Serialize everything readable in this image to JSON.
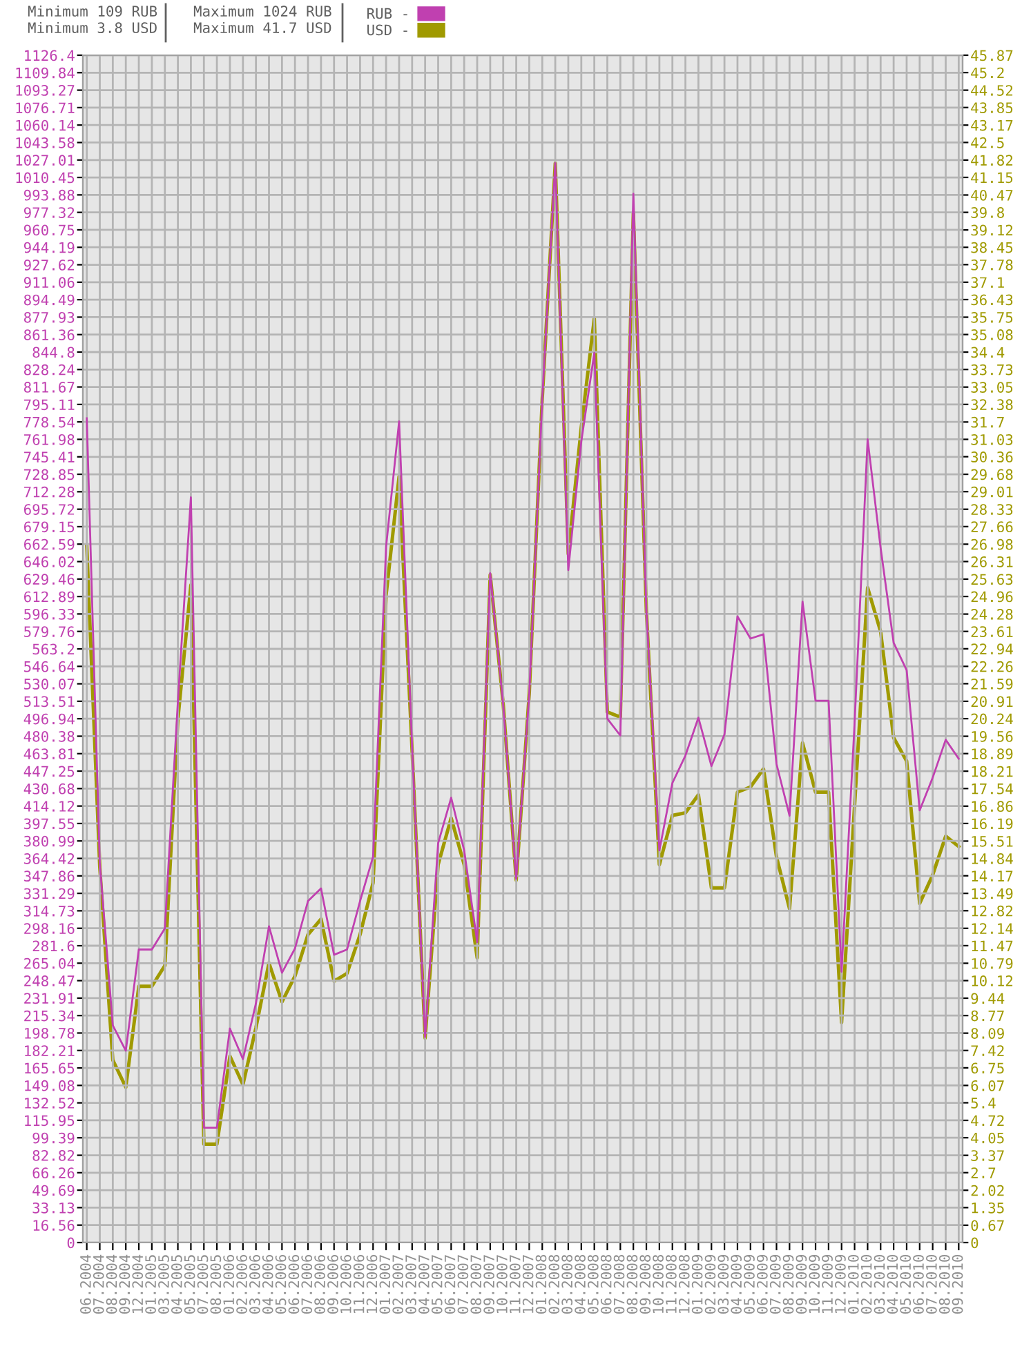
{
  "chart_data": {
    "type": "line",
    "annotations": [
      "Minimum 109 RUB",
      "Minimum 3.8 USD",
      "Maximum 1024 RUB",
      "Maximum 41.7 USD"
    ],
    "categories": [
      "06.2004",
      "07.2004",
      "08.2004",
      "09.2004",
      "12.2004",
      "01.2005",
      "03.2005",
      "04.2005",
      "05.2005",
      "07.2005",
      "08.2005",
      "01.2006",
      "02.2006",
      "03.2006",
      "04.2006",
      "05.2006",
      "06.2006",
      "07.2006",
      "08.2006",
      "09.2006",
      "10.2006",
      "11.2006",
      "12.2006",
      "01.2007",
      "02.2007",
      "03.2007",
      "04.2007",
      "05.2007",
      "06.2007",
      "07.2007",
      "08.2007",
      "09.2007",
      "10.2007",
      "11.2007",
      "12.2007",
      "01.2008",
      "02.2008",
      "03.2008",
      "04.2008",
      "05.2008",
      "06.2008",
      "07.2008",
      "08.2008",
      "09.2008",
      "10.2008",
      "11.2008",
      "12.2008",
      "01.2009",
      "02.2009",
      "03.2009",
      "04.2009",
      "05.2009",
      "06.2009",
      "07.2009",
      "08.2009",
      "09.2009",
      "10.2009",
      "11.2009",
      "12.2009",
      "01.2010",
      "02.2010",
      "03.2010",
      "04.2010",
      "05.2010",
      "06.2010",
      "07.2010",
      "08.2010",
      "09.2010"
    ],
    "series": [
      {
        "name": "RUB -",
        "color": "#c040b0",
        "values": [
          782,
          360,
          206,
          182,
          278,
          278,
          298,
          513,
          707,
          109,
          109,
          203,
          174,
          227,
          300,
          256,
          279,
          324,
          336,
          273,
          278,
          324,
          366,
          660,
          779,
          470,
          195,
          379,
          422,
          372,
          285,
          635,
          510,
          345,
          520,
          800,
          1024,
          638,
          760,
          844,
          497,
          481,
          995,
          600,
          372,
          436,
          462,
          498,
          452,
          482,
          594,
          573,
          577,
          454,
          405,
          608,
          514,
          514,
          257,
          493,
          762,
          659,
          569,
          543,
          410,
          441,
          477,
          459
        ]
      },
      {
        "name": "USD -",
        "color": "#a09a00",
        "axis": "y2",
        "values": [
          26.9,
          14.5,
          7.05,
          6.0,
          9.9,
          9.9,
          10.7,
          20.2,
          25.4,
          3.8,
          3.8,
          7.2,
          6.1,
          8.3,
          10.8,
          9.3,
          10.3,
          11.9,
          12.5,
          10.1,
          10.4,
          11.9,
          13.9,
          25.0,
          29.6,
          19.0,
          7.9,
          14.6,
          16.4,
          14.6,
          11.0,
          25.8,
          20.8,
          14.0,
          21.2,
          32.6,
          41.7,
          26.6,
          31.5,
          35.7,
          20.5,
          20.3,
          39.8,
          24.4,
          14.6,
          16.5,
          16.6,
          17.3,
          13.7,
          13.7,
          17.4,
          17.6,
          18.3,
          14.9,
          12.9,
          19.3,
          17.4,
          17.4,
          8.5,
          16.9,
          25.3,
          23.6,
          19.5,
          18.6,
          13.1,
          14.2,
          15.7,
          15.3
        ]
      }
    ],
    "ylim": [
      0,
      1126.4
    ],
    "yticks": [
      0,
      16.56,
      33.13,
      49.69,
      66.26,
      82.82,
      99.39,
      115.95,
      132.52,
      149.08,
      165.65,
      182.21,
      198.78,
      215.34,
      231.91,
      248.47,
      265.04,
      281.6,
      298.16,
      314.73,
      331.29,
      347.86,
      364.42,
      380.99,
      397.55,
      414.12,
      430.68,
      447.25,
      463.81,
      480.38,
      496.94,
      513.51,
      530.07,
      546.64,
      563.2,
      579.76,
      596.33,
      612.89,
      629.46,
      646.02,
      662.59,
      679.15,
      695.72,
      712.28,
      728.85,
      745.41,
      761.98,
      778.54,
      795.11,
      811.67,
      828.24,
      844.8,
      861.36,
      877.93,
      894.49,
      911.06,
      927.62,
      944.19,
      960.75,
      977.32,
      993.88,
      1010.45,
      1027.01,
      1043.58,
      1060.14,
      1076.71,
      1093.27,
      1109.84,
      1126.4
    ],
    "y2lim": [
      0,
      45.87
    ],
    "y2ticks": [
      0,
      0.67,
      1.35,
      2.02,
      2.7,
      3.37,
      4.05,
      4.72,
      5.4,
      6.07,
      6.75,
      7.42,
      8.09,
      8.77,
      9.44,
      10.12,
      10.79,
      11.47,
      12.14,
      12.82,
      13.49,
      14.17,
      14.84,
      15.51,
      16.19,
      16.86,
      17.54,
      18.21,
      18.89,
      19.56,
      20.24,
      20.91,
      21.59,
      22.26,
      22.94,
      23.61,
      24.28,
      24.96,
      25.63,
      26.31,
      26.98,
      27.66,
      28.33,
      29.01,
      29.68,
      30.36,
      31.03,
      31.7,
      32.38,
      33.05,
      33.73,
      34.4,
      35.08,
      35.75,
      36.43,
      37.1,
      37.78,
      38.45,
      39.12,
      39.8,
      40.47,
      41.15,
      41.82,
      42.5,
      43.17,
      43.85,
      44.52,
      45.2,
      45.87
    ],
    "grid": true,
    "legend": "top",
    "marker": "none",
    "line_style": "solid"
  }
}
